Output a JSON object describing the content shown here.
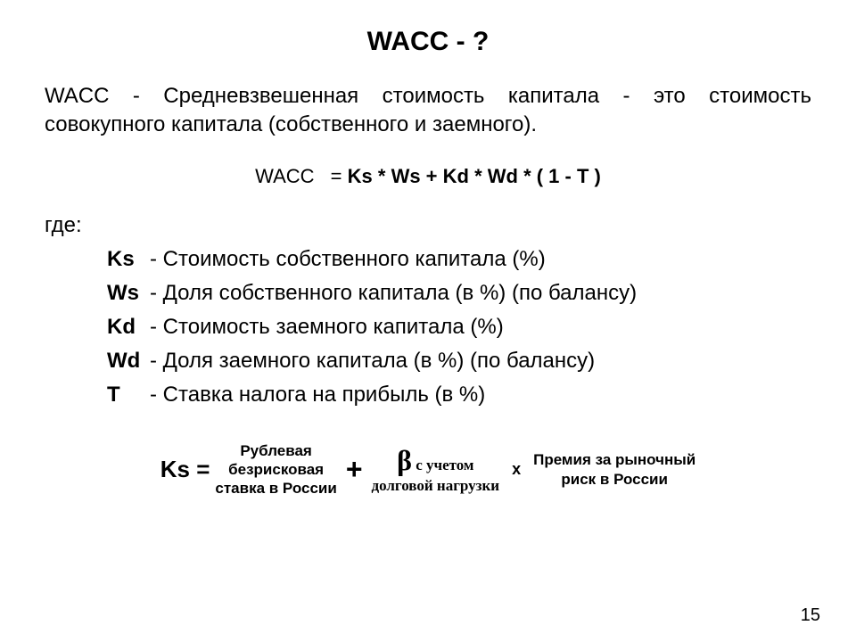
{
  "title": "WACC - ?",
  "definition": "WACC - Средневзвешенная стоимость капитала - это стоимость совокупного капитала (собственного и заемного).",
  "formula": {
    "lhs": "WACC",
    "eq": "=",
    "rhs": "Ks * Ws + Kd * Wd * ( 1 - T )"
  },
  "where_label": "где:",
  "vars": [
    {
      "sym": "Ks",
      "desc": "- Стоимость собственного капитала (%)"
    },
    {
      "sym": "Ws",
      "desc": "- Доля собственного капитала (в %) (по балансу)"
    },
    {
      "sym": "Kd",
      "desc": "- Стоимость заемного капитала (%)"
    },
    {
      "sym": "Wd",
      "desc": "- Доля заемного капитала (в %) (по балансу)"
    },
    {
      "sym": "T",
      "desc": "- Ставка налога на прибыль (в %)"
    }
  ],
  "ks_formula": {
    "lhs": "Ks =",
    "term1_l1": "Рублевая",
    "term1_l2": "безрисковая",
    "term1_l3": "ставка в России",
    "plus": "+",
    "beta_sym": "β",
    "beta_top_tail": " с учетом",
    "beta_bottom": "долговой нагрузки",
    "x": "х",
    "term3_l1": "Премия за рыночный",
    "term3_l2": "риск в России"
  },
  "page_number": "15",
  "colors": {
    "background": "#ffffff",
    "text": "#000000"
  }
}
